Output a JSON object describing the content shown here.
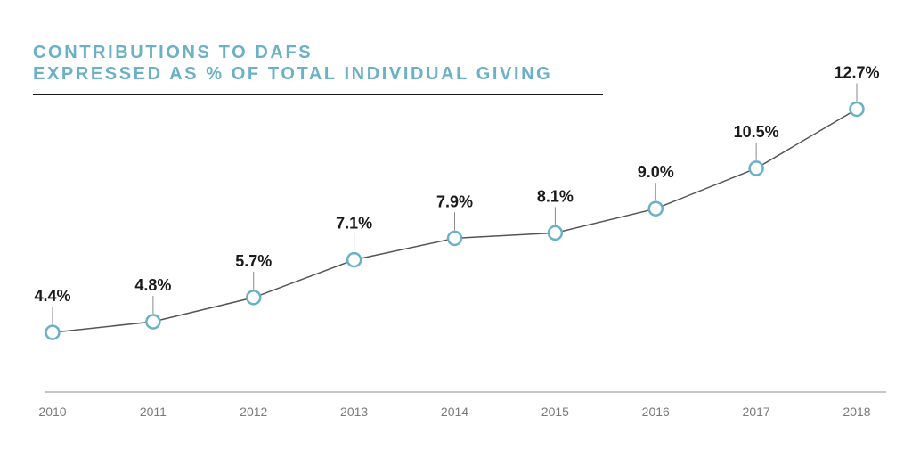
{
  "chart_data": {
    "type": "line",
    "title_lines": [
      "CONTRIBUTIONS TO DAFS",
      "EXPRESSED AS % OF TOTAL INDIVIDUAL GIVING"
    ],
    "xlabel": "",
    "ylabel": "",
    "x": [
      "2010",
      "2011",
      "2012",
      "2013",
      "2014",
      "2015",
      "2016",
      "2017",
      "2018"
    ],
    "values": [
      4.4,
      4.8,
      5.7,
      7.1,
      7.9,
      8.1,
      9.0,
      10.5,
      12.7
    ],
    "data_labels": [
      "4.4%",
      "4.8%",
      "5.7%",
      "7.1%",
      "7.9%",
      "8.1%",
      "9.0%",
      "10.5%",
      "12.7%"
    ],
    "ylim": [
      0,
      14
    ],
    "grid": false,
    "legend": "none",
    "colors": {
      "title": "#6ab0c6",
      "line": "#555555",
      "marker_stroke": "#6ab0c6",
      "marker_fill": "#ffffff",
      "axis": "#888888",
      "label": "#1a1a1a",
      "tick": "#7a7a7a"
    }
  }
}
